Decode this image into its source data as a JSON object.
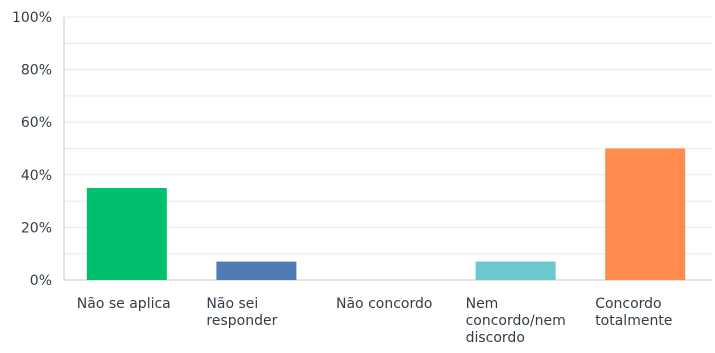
{
  "chart_data": {
    "type": "bar",
    "categories": [
      [
        "Não se aplica"
      ],
      [
        "Não sei",
        "responder"
      ],
      [
        "Não concordo"
      ],
      [
        "Nem",
        "concordo/nem",
        "discordo"
      ],
      [
        "Concordo",
        "totalmente"
      ]
    ],
    "values": [
      35,
      7,
      0,
      7,
      50
    ],
    "colors": [
      "#00bf6f",
      "#507cb6",
      "#f9be00",
      "#6bc8cd",
      "#ff8b4f"
    ],
    "ylim": [
      0,
      100
    ],
    "yticks": [
      0,
      20,
      40,
      60,
      80,
      100
    ],
    "ytick_labels": [
      "0%",
      "20%",
      "40%",
      "60%",
      "80%",
      "100%"
    ],
    "grid": true,
    "grid_minor_step": 10,
    "grid_color": "#e8e8e8",
    "axis_color": "#c8c8c8",
    "text_color": "#333e48"
  }
}
